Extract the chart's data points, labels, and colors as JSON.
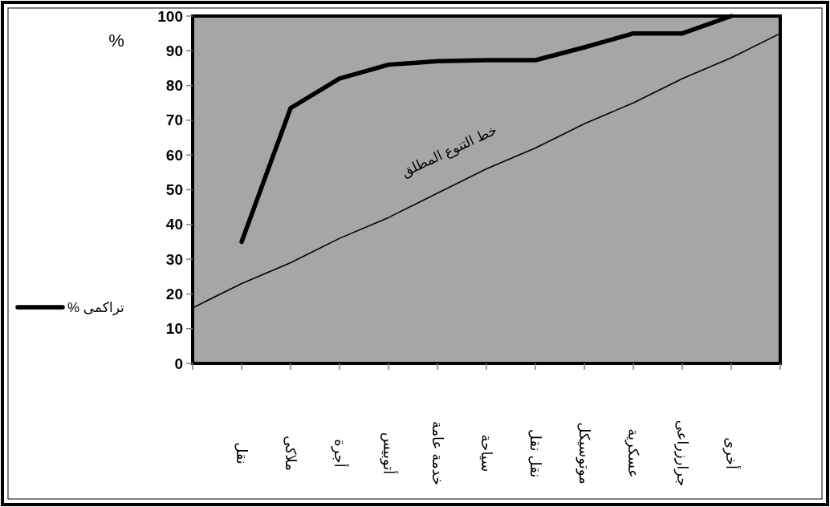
{
  "chart_data": {
    "type": "line",
    "ylabel": "%",
    "categories": [
      null,
      "نقل",
      "ملاكى",
      "أجرة",
      "أتوبيس",
      "خدمة عامة",
      "سياحة",
      "نقل نقل",
      "موتوسيكل",
      "عسكرية",
      "جرارزراعى",
      "أخرى",
      null
    ],
    "ylim": [
      0,
      100
    ],
    "yticks": [
      0,
      10,
      20,
      30,
      40,
      50,
      60,
      70,
      80,
      90,
      100
    ],
    "grid": false,
    "legend": "left",
    "marker": "none",
    "series": [
      {
        "name": "تراكمى %",
        "color": "#000000",
        "values": [
          null,
          35,
          73.5,
          82,
          86,
          87,
          87.3,
          87.3,
          91,
          95,
          95,
          100,
          null
        ]
      },
      {
        "name": "خط التنوع المطلق",
        "color": "#000000",
        "values": [
          16,
          23,
          29,
          36,
          42,
          49,
          56,
          62,
          69,
          75,
          82,
          88,
          95
        ]
      }
    ]
  }
}
